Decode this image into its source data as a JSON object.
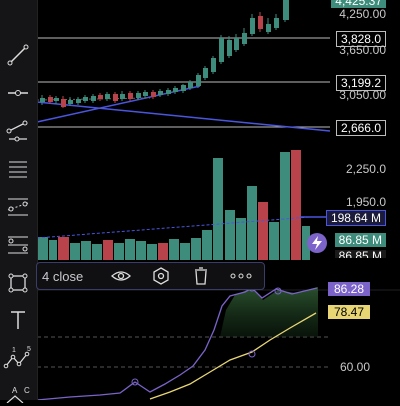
{
  "drawing_popup": {
    "label": "4 close",
    "actions": [
      "eye-icon",
      "settings-hexagon-icon",
      "trash-icon",
      "more-icon"
    ]
  },
  "toolbar": {
    "tools": [
      "trend-line-icon",
      "horizontal-line-icon",
      "channel-icon",
      "fib-retracement-icon",
      "pitchfork-icon",
      "gann-icon",
      "rectangle-icon",
      "text-icon",
      "pattern-icon",
      "abcd-pattern-icon"
    ],
    "pattern_digits": [
      "1",
      "5"
    ],
    "abcd_letters": [
      "A",
      "C"
    ]
  },
  "price_axis": {
    "top_tag": "4,425.37",
    "labels": [
      {
        "text": "4,250.00"
      },
      {
        "text": "3,828.0",
        "boxed": true
      },
      {
        "text": "3,650.00"
      },
      {
        "text": "3,199.2",
        "boxed": true
      },
      {
        "text": "3,050.00"
      },
      {
        "text": "2,666.0",
        "boxed": true
      }
    ]
  },
  "volume_axis": {
    "labels": [
      "2,250.0",
      "1,950.0"
    ],
    "tag_1": "198.64 M",
    "tag_2": "86.85 M",
    "tag_2_partial": "86.85 M"
  },
  "indicator": {
    "value_1": "86.28",
    "value_2": "78.47",
    "level": "60.00"
  },
  "colors": {
    "up": "#3e8c7c",
    "down": "#b8434a",
    "accent_purple": "#7b63c9",
    "accent_yellow": "#e8d675",
    "trend_blue": "#4a56e0",
    "tag_green": "#3e8c7c"
  }
}
